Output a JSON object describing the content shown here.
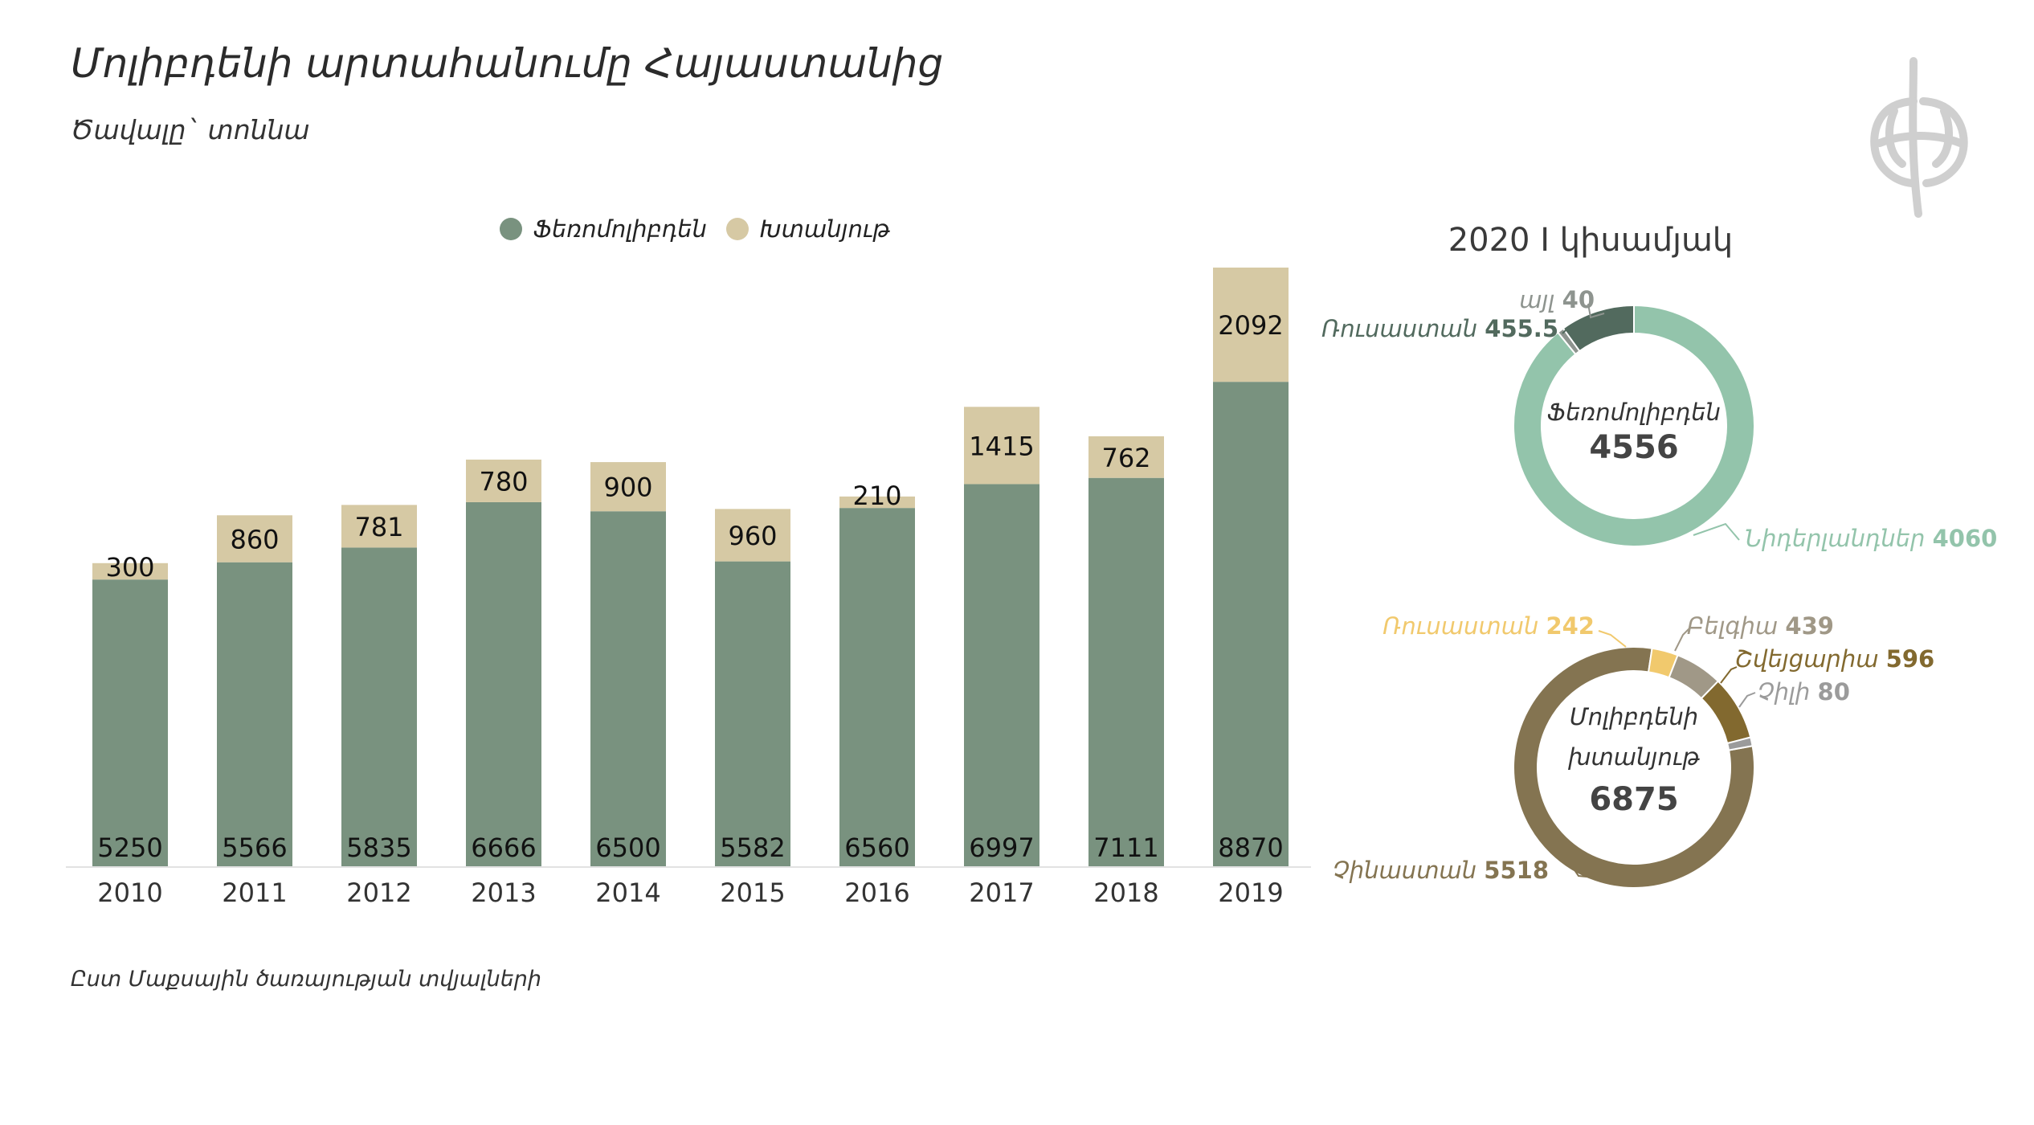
{
  "title": "Մոլիբդենի արտահանումը Հայաստանից",
  "subtitle": "Ծավալը` տոննա",
  "source": "Ըստ Մաքսային ծառայության տվյալների",
  "colors": {
    "ferromolybdenum": "#79927f",
    "concentrate": "#d6c9a4",
    "donut1_netherlands": "#93c4ab",
    "donut1_russia": "#526a5e",
    "donut1_other": "#8e948f",
    "donut2_china": "#847451",
    "donut2_russia": "#f1c96d",
    "donut2_belgium": "#a09887",
    "donut2_bulgaria": "#82692f",
    "donut2_chile": "#9b9b9b"
  },
  "chart_data": [
    {
      "type": "bar",
      "stacked": true,
      "legend": [
        "Ֆեռոմոլիբդեն",
        "Խտանյութ"
      ],
      "legend_position": "top",
      "categories": [
        "2010",
        "2011",
        "2012",
        "2013",
        "2014",
        "2015",
        "2016",
        "2017",
        "2018",
        "2019"
      ],
      "series": [
        {
          "name": "Ֆեռոմոլիբդեն",
          "values": [
            5250,
            5566,
            5835,
            6666,
            6500,
            5582,
            6560,
            6997,
            7111,
            8870
          ]
        },
        {
          "name": "Խտանյութ",
          "values": [
            300,
            860,
            781,
            780,
            900,
            960,
            210,
            1415,
            762,
            2092
          ]
        }
      ],
      "ylim": [
        0,
        11300
      ],
      "grid": false
    },
    {
      "type": "pie",
      "donut": true,
      "title": "2020 I կիսամյակ",
      "center_label": "Ֆեռոմոլիբդեն",
      "center_value": "4556",
      "slices": [
        {
          "label": "Նիդերլանդներ",
          "value": 4060
        },
        {
          "label": "այլ",
          "value": 40
        },
        {
          "label": "Ռուսաստան",
          "value": 455.5
        }
      ]
    },
    {
      "type": "pie",
      "donut": true,
      "center_label": [
        "Մոլիբդենի",
        "խտանյութ"
      ],
      "center_value": "6875",
      "slices": [
        {
          "label": "Չինաստան",
          "value": 5518
        },
        {
          "label": "Ռուսաստան",
          "value": 242
        },
        {
          "label": "Բելգիա",
          "value": 439
        },
        {
          "label": "Շվեյցարիա",
          "value": 596
        },
        {
          "label": "Չիլի",
          "value": 80
        }
      ]
    }
  ]
}
